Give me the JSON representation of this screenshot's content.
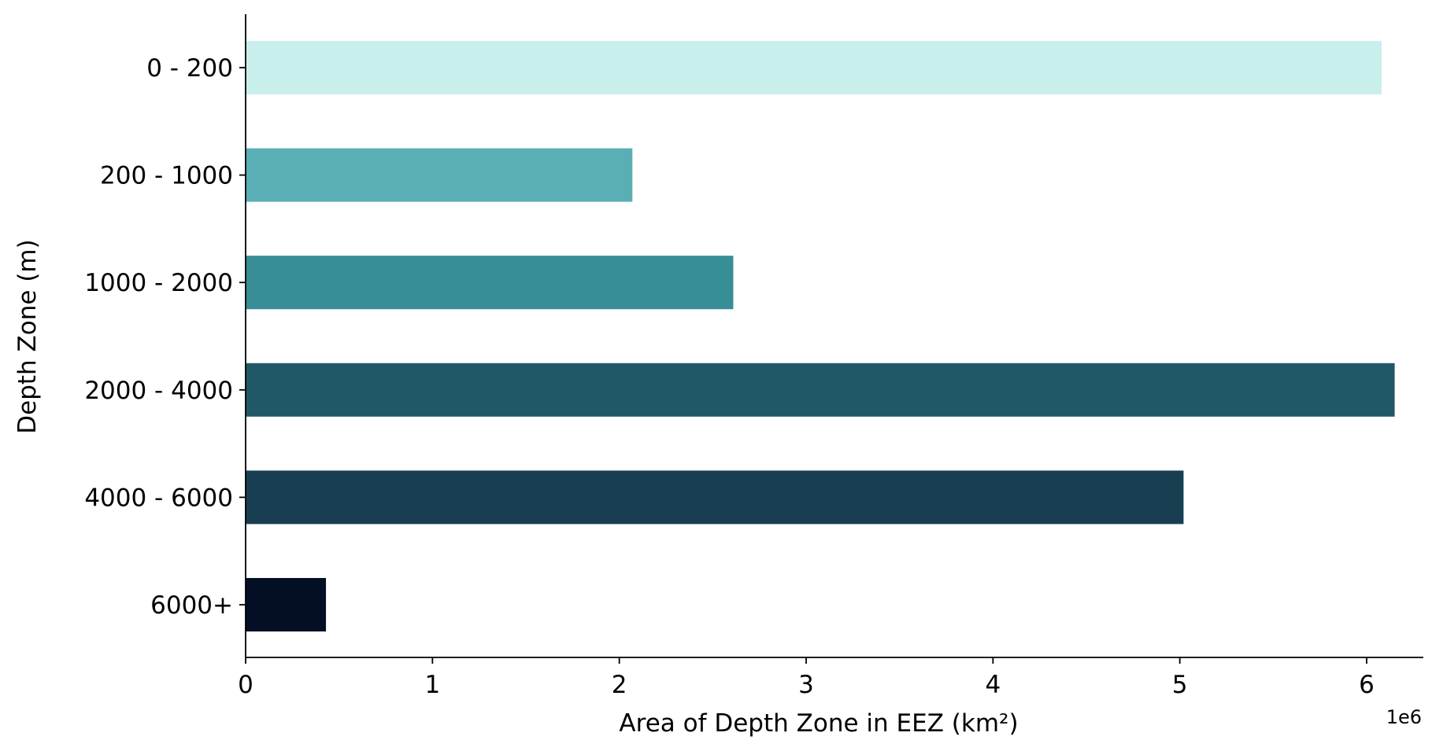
{
  "chart_data": {
    "type": "bar",
    "orientation": "horizontal",
    "categories": [
      "0 - 200",
      "200 - 1000",
      "1000 - 2000",
      "2000 - 4000",
      "4000 - 6000",
      "6000+"
    ],
    "values": [
      6080000,
      2070000,
      2610000,
      6150000,
      5020000,
      430000
    ],
    "colors": [
      "#c9efec",
      "#5aafb4",
      "#378e96",
      "#215866",
      "#183f51",
      "#040f26"
    ],
    "xlabel": "Area of Depth Zone in EEZ (km²)",
    "ylabel": "Depth Zone (m)",
    "x_offset_label": "1e6",
    "xticks": [
      0,
      1,
      2,
      3,
      4,
      5,
      6
    ],
    "xlim": [
      0,
      6.45
    ],
    "x_scale": 1000000,
    "grid": false,
    "legend": "none"
  }
}
